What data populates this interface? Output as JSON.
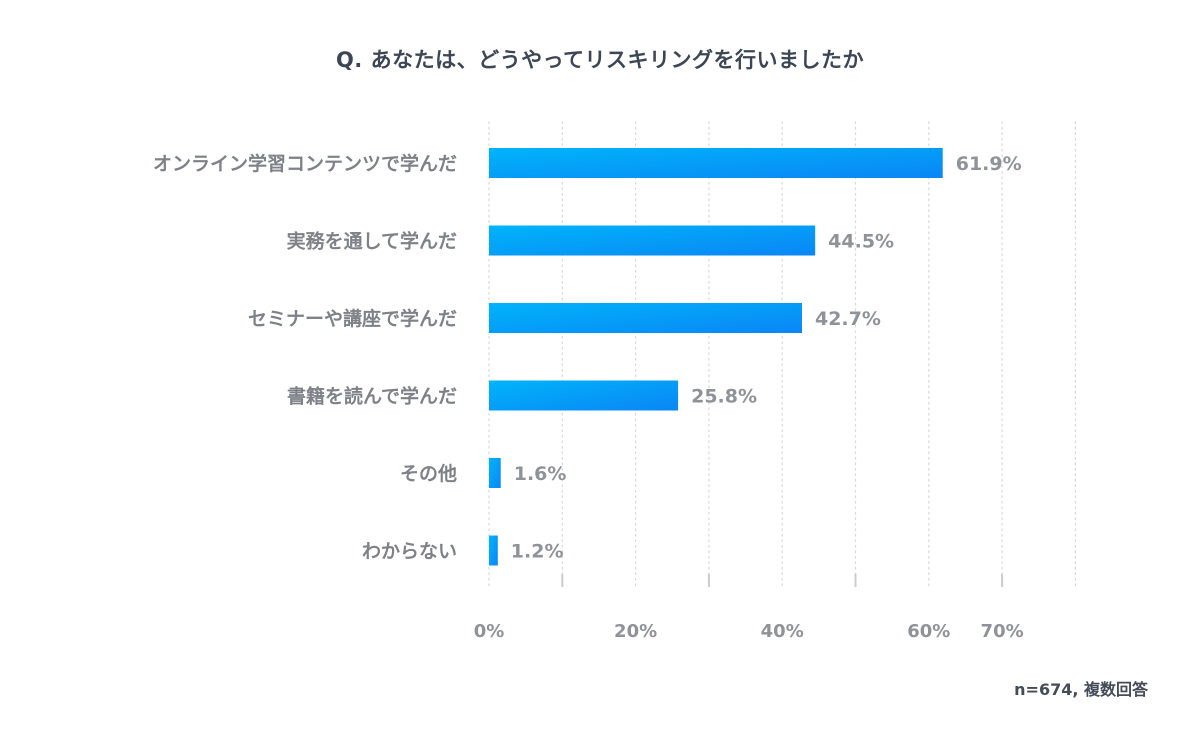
{
  "chart_data": {
    "type": "bar",
    "orientation": "horizontal",
    "title": "Q. あなたは、どうやってリスキリングを行いましたか",
    "categories": [
      "オンライン学習コンテンツで学んだ",
      "実務を通して学んだ",
      "セミナーや講座で学んだ",
      "書籍を読んで学んだ",
      "その他",
      "わからない"
    ],
    "values": [
      61.9,
      44.5,
      42.7,
      25.8,
      1.6,
      1.2
    ],
    "value_labels": [
      "61.9%",
      "44.5%",
      "42.7%",
      "25.8%",
      "1.6%",
      "1.2%"
    ],
    "x_ticks": [
      0,
      20,
      40,
      60,
      70
    ],
    "x_tick_labels": [
      "0%",
      "20%",
      "40%",
      "60%",
      "70%"
    ],
    "xlim": [
      0,
      80
    ],
    "xlabel": "",
    "ylabel": "",
    "grid": true,
    "bar_color_start": "#00b4fa",
    "bar_color_end": "#0a86f5",
    "footnote": "n=674, 複数回答"
  }
}
